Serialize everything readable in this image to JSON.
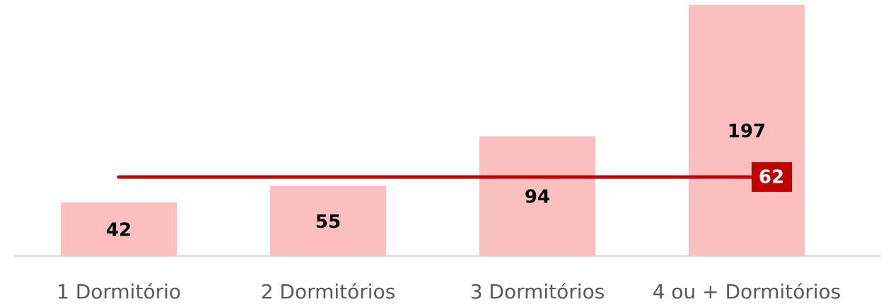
{
  "chart_data": {
    "type": "bar",
    "categories": [
      "1 Dormitório",
      "2 Dormitórios",
      "3 Dormitórios",
      "4 ou + Dormitórios"
    ],
    "values": [
      42,
      55,
      94,
      197
    ],
    "color": "#fbbfbf",
    "reference_line": {
      "value": 62,
      "color": "#c00000"
    }
  }
}
